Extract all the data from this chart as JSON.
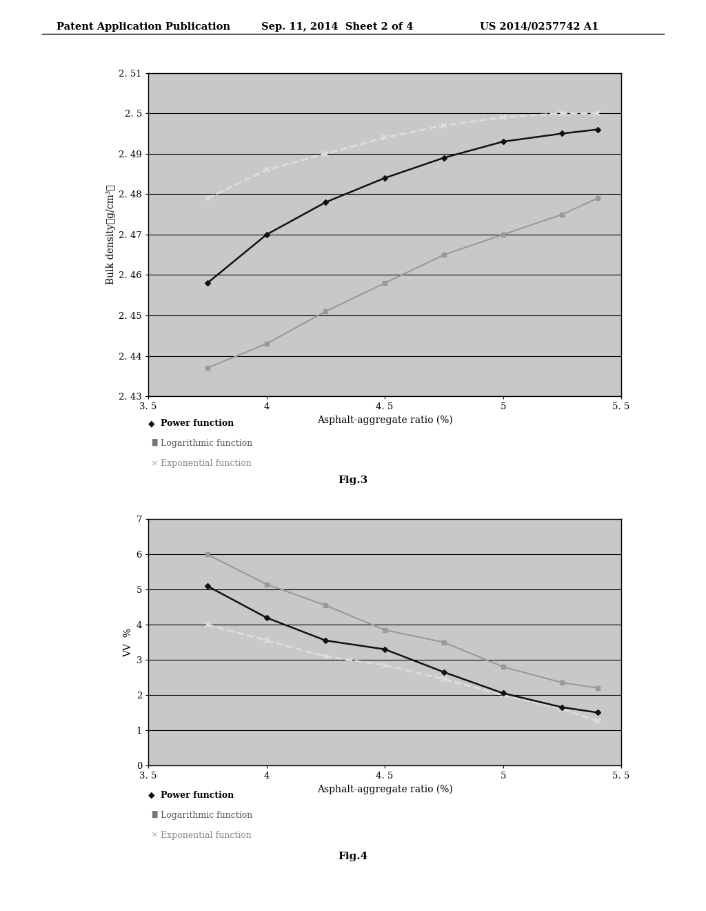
{
  "header_left": "Patent Application Publication",
  "header_mid": "Sep. 11, 2014  Sheet 2 of 4",
  "header_right": "US 2014/0257742 A1",
  "fig3": {
    "xlabel": "Asphalt-aggregate ratio (%)",
    "ylabel": "Bulk density（g/cm³）",
    "xlim": [
      3.5,
      5.5
    ],
    "ylim": [
      2.43,
      2.51
    ],
    "yticks": [
      2.43,
      2.44,
      2.45,
      2.46,
      2.47,
      2.48,
      2.49,
      2.5,
      2.51
    ],
    "xticks": [
      3.5,
      4.0,
      4.5,
      5.0,
      5.5
    ],
    "xtick_labels": [
      "3. 5",
      "4",
      "4. 5",
      "5",
      "5. 5"
    ],
    "ytick_labels": [
      "2. 43",
      "2. 44",
      "2. 45",
      "2. 46",
      "2. 47",
      "2. 48",
      "2. 49",
      "2. 5",
      "2. 51"
    ],
    "power_x": [
      3.75,
      4.0,
      4.25,
      4.5,
      4.75,
      5.0,
      5.25,
      5.4
    ],
    "power_y": [
      2.458,
      2.47,
      2.478,
      2.484,
      2.489,
      2.493,
      2.495,
      2.496
    ],
    "log_x": [
      3.75,
      4.0,
      4.25,
      4.5,
      4.75,
      5.0,
      5.25,
      5.4
    ],
    "log_y": [
      2.437,
      2.443,
      2.451,
      2.458,
      2.465,
      2.47,
      2.475,
      2.479
    ],
    "exp_x": [
      3.75,
      4.0,
      4.25,
      4.5,
      4.75,
      5.0,
      5.25,
      5.4
    ],
    "exp_y": [
      2.479,
      2.486,
      2.49,
      2.494,
      2.497,
      2.499,
      2.5,
      2.5
    ],
    "power_color": "#111111",
    "log_color": "#999999",
    "exp_color": "#dddddd",
    "bg_color": "#c8c8c8"
  },
  "fig4": {
    "xlabel": "Asphalt-aggregate ratio (%)",
    "ylabel": "VV  %",
    "xlim": [
      3.5,
      5.5
    ],
    "ylim": [
      0,
      7
    ],
    "yticks": [
      0,
      1,
      2,
      3,
      4,
      5,
      6,
      7
    ],
    "xticks": [
      3.5,
      4.0,
      4.5,
      5.0,
      5.5
    ],
    "xtick_labels": [
      "3. 5",
      "4",
      "4. 5",
      "5",
      "5. 5"
    ],
    "ytick_labels": [
      "0",
      "1",
      "2",
      "3",
      "4",
      "5",
      "6",
      "7"
    ],
    "power_x": [
      3.75,
      4.0,
      4.25,
      4.5,
      4.75,
      5.0,
      5.25,
      5.4
    ],
    "power_y": [
      5.1,
      4.2,
      3.55,
      3.3,
      2.65,
      2.05,
      1.65,
      1.5
    ],
    "log_x": [
      3.75,
      4.0,
      4.25,
      4.5,
      4.75,
      5.0,
      5.25,
      5.4
    ],
    "log_y": [
      6.0,
      5.15,
      4.55,
      3.85,
      3.5,
      2.8,
      2.35,
      2.2
    ],
    "exp_x": [
      3.75,
      4.0,
      4.25,
      4.5,
      4.75,
      5.0,
      5.25,
      5.4
    ],
    "exp_y": [
      4.0,
      3.55,
      3.1,
      2.85,
      2.45,
      2.0,
      1.6,
      1.25
    ],
    "power_color": "#111111",
    "log_color": "#999999",
    "exp_color": "#dddddd",
    "bg_color": "#c8c8c8"
  },
  "legend": {
    "power_label": "Power function",
    "log_label": "Logarithmic function",
    "exp_label": "Exponential function"
  }
}
